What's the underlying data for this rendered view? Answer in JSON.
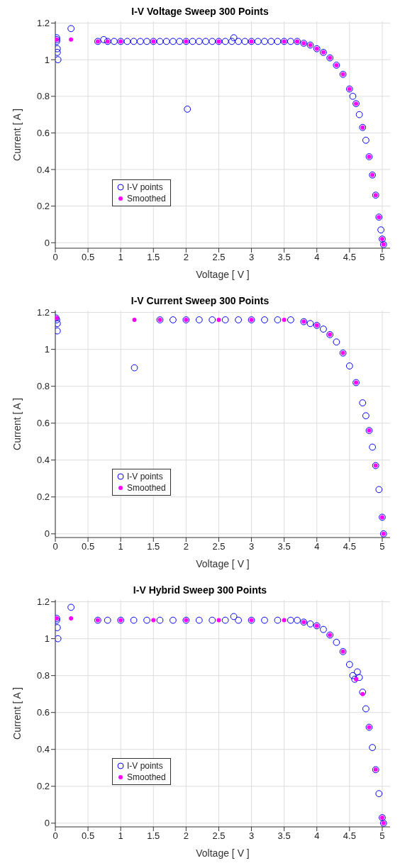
{
  "chart_data": [
    {
      "type": "scatter",
      "title": "I-V Voltage Sweep 300 Points",
      "xlabel": "Voltage   [ V ]",
      "ylabel": "Current   [ A ]",
      "xlim": [
        0,
        5.12
      ],
      "ylim": [
        -0.03,
        1.21
      ],
      "xticks": [
        0,
        0.5,
        1,
        1.5,
        2,
        2.5,
        3,
        3.5,
        4,
        4.5,
        5
      ],
      "yticks": [
        0,
        0.2,
        0.4,
        0.6,
        0.8,
        1,
        1.2
      ],
      "grid": true,
      "legend": "left",
      "marker": "circle",
      "series": [
        {
          "name": "I-V points",
          "color": "#0000ff",
          "x": [
            0.02,
            0.02,
            0.02,
            0.03,
            0.03,
            0.04,
            0.24,
            0.65,
            0.74,
            0.8,
            0.9,
            1.0,
            1.1,
            1.2,
            1.3,
            1.4,
            1.5,
            1.6,
            1.7,
            1.8,
            1.9,
            2.0,
            2.02,
            2.1,
            2.2,
            2.3,
            2.4,
            2.5,
            2.6,
            2.7,
            2.73,
            2.8,
            2.9,
            3.0,
            3.1,
            3.2,
            3.3,
            3.4,
            3.5,
            3.6,
            3.7,
            3.8,
            3.9,
            4.0,
            4.1,
            4.2,
            4.3,
            4.4,
            4.5,
            4.55,
            4.6,
            4.65,
            4.7,
            4.75,
            4.8,
            4.85,
            4.9,
            4.95,
            4.98,
            5.0,
            5.02
          ],
          "values": [
            1.11,
            1.12,
            1.1,
            1.06,
            1.04,
            1.0,
            1.17,
            1.1,
            1.11,
            1.1,
            1.1,
            1.1,
            1.1,
            1.1,
            1.1,
            1.1,
            1.1,
            1.1,
            1.1,
            1.1,
            1.1,
            1.1,
            0.73,
            1.1,
            1.1,
            1.1,
            1.1,
            1.1,
            1.1,
            1.1,
            1.12,
            1.1,
            1.1,
            1.1,
            1.1,
            1.1,
            1.1,
            1.1,
            1.1,
            1.1,
            1.1,
            1.09,
            1.08,
            1.06,
            1.04,
            1.01,
            0.97,
            0.92,
            0.84,
            0.8,
            0.76,
            0.7,
            0.63,
            0.56,
            0.47,
            0.37,
            0.26,
            0.14,
            0.07,
            0.02,
            -0.01
          ]
        },
        {
          "name": "Smoothed",
          "color": "#ff00ff",
          "x": [
            0.02,
            0.24,
            0.65,
            0.8,
            1.0,
            1.5,
            2.0,
            2.5,
            3.0,
            3.5,
            3.7,
            3.8,
            3.9,
            4.0,
            4.1,
            4.2,
            4.3,
            4.4,
            4.5,
            4.6,
            4.7,
            4.8,
            4.85,
            4.9,
            4.95,
            5.0,
            5.02
          ],
          "values": [
            1.11,
            1.11,
            1.1,
            1.1,
            1.1,
            1.1,
            1.1,
            1.1,
            1.1,
            1.1,
            1.1,
            1.09,
            1.08,
            1.06,
            1.04,
            1.01,
            0.97,
            0.92,
            0.84,
            0.76,
            0.63,
            0.47,
            0.37,
            0.26,
            0.14,
            0.02,
            -0.01
          ]
        }
      ]
    },
    {
      "type": "scatter",
      "title": "I-V Current Sweep 300 Points",
      "xlabel": "Voltage   [ V ]",
      "ylabel": "Current   [ A ]",
      "xlim": [
        0,
        5.12
      ],
      "ylim": [
        -0.02,
        1.21
      ],
      "xticks": [
        0,
        0.5,
        1,
        1.5,
        2,
        2.5,
        3,
        3.5,
        4,
        4.5,
        5
      ],
      "yticks": [
        0,
        0.2,
        0.4,
        0.6,
        0.8,
        1,
        1.2
      ],
      "grid": true,
      "legend": "left",
      "marker": "circle",
      "series": [
        {
          "name": "I-V points",
          "color": "#0000ff",
          "x": [
            0.01,
            0.02,
            0.03,
            0.03,
            1.21,
            1.6,
            1.8,
            2.0,
            2.2,
            2.4,
            2.6,
            2.8,
            3.0,
            3.2,
            3.4,
            3.6,
            3.8,
            3.9,
            4.0,
            4.1,
            4.2,
            4.3,
            4.4,
            4.5,
            4.6,
            4.7,
            4.75,
            4.8,
            4.85,
            4.9,
            4.95,
            5.0,
            5.02
          ],
          "values": [
            1.17,
            1.16,
            1.14,
            1.1,
            0.9,
            1.16,
            1.16,
            1.16,
            1.16,
            1.16,
            1.16,
            1.16,
            1.16,
            1.16,
            1.16,
            1.16,
            1.15,
            1.14,
            1.13,
            1.11,
            1.08,
            1.04,
            0.98,
            0.91,
            0.82,
            0.71,
            0.64,
            0.56,
            0.47,
            0.37,
            0.24,
            0.09,
            0.0
          ]
        },
        {
          "name": "Smoothed",
          "color": "#ff00ff",
          "x": [
            0.02,
            1.21,
            1.6,
            2.0,
            2.5,
            3.0,
            3.5,
            3.8,
            4.0,
            4.2,
            4.4,
            4.6,
            4.8,
            4.9,
            5.0,
            5.02
          ],
          "values": [
            1.17,
            1.16,
            1.16,
            1.16,
            1.16,
            1.16,
            1.16,
            1.15,
            1.13,
            1.08,
            0.98,
            0.82,
            0.56,
            0.37,
            0.09,
            0.0
          ]
        }
      ]
    },
    {
      "type": "scatter",
      "title": "I-V Hybrid Sweep 300 Points",
      "xlabel": "Voltage   [ V ]",
      "ylabel": "Current   [ A ]",
      "xlim": [
        0,
        5.12
      ],
      "ylim": [
        -0.02,
        1.21
      ],
      "xticks": [
        0,
        0.5,
        1,
        1.5,
        2,
        2.5,
        3,
        3.5,
        4,
        4.5,
        5
      ],
      "yticks": [
        0,
        0.2,
        0.4,
        0.6,
        0.8,
        1,
        1.2
      ],
      "grid": true,
      "legend": "left",
      "marker": "circle",
      "series": [
        {
          "name": "I-V points",
          "color": "#0000ff",
          "x": [
            0.02,
            0.02,
            0.03,
            0.04,
            0.24,
            0.65,
            0.8,
            1.0,
            1.2,
            1.4,
            1.6,
            1.8,
            2.0,
            2.2,
            2.4,
            2.6,
            2.73,
            2.8,
            3.0,
            3.2,
            3.4,
            3.6,
            3.7,
            3.8,
            3.9,
            4.0,
            4.1,
            4.2,
            4.3,
            4.4,
            4.5,
            4.55,
            4.58,
            4.62,
            4.65,
            4.7,
            4.75,
            4.8,
            4.85,
            4.9,
            4.95,
            5.0,
            5.02
          ],
          "values": [
            1.11,
            1.1,
            1.06,
            1.0,
            1.17,
            1.1,
            1.1,
            1.1,
            1.1,
            1.1,
            1.1,
            1.1,
            1.1,
            1.1,
            1.1,
            1.1,
            1.12,
            1.1,
            1.1,
            1.1,
            1.1,
            1.1,
            1.1,
            1.09,
            1.08,
            1.07,
            1.05,
            1.02,
            0.98,
            0.93,
            0.86,
            0.8,
            0.78,
            0.82,
            0.79,
            0.71,
            0.62,
            0.52,
            0.41,
            0.29,
            0.16,
            0.03,
            0.0
          ]
        },
        {
          "name": "Smoothed",
          "color": "#ff00ff",
          "x": [
            0.02,
            0.24,
            0.65,
            1.0,
            1.5,
            2.0,
            2.5,
            3.0,
            3.5,
            3.8,
            4.0,
            4.2,
            4.4,
            4.6,
            4.7,
            4.8,
            4.9,
            5.0,
            5.02
          ],
          "values": [
            1.11,
            1.11,
            1.1,
            1.1,
            1.1,
            1.1,
            1.1,
            1.1,
            1.1,
            1.09,
            1.07,
            1.02,
            0.93,
            0.78,
            0.7,
            0.52,
            0.29,
            0.03,
            0.0
          ]
        }
      ]
    }
  ]
}
